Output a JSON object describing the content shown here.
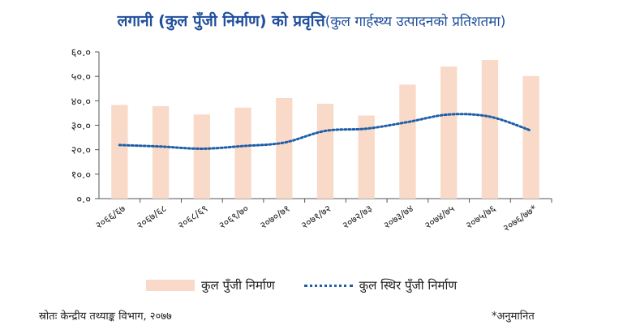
{
  "title": {
    "main": "लगानी (कुल पुँजी निर्माण) को प्रवृत्ति",
    "sub": "(कुल गार्हस्थ्य उत्पादनको प्रतिशतमा)"
  },
  "footer": {
    "source": "स्रोतः केन्द्रीय तथ्याङ्क विभाग, २०७७",
    "note": "*अनुमानित"
  },
  "colors": {
    "bar": "#f9d9c7",
    "line": "#1f5fa8",
    "axis": "#555555",
    "title": "#1f4e9c"
  },
  "chart_data": {
    "type": "bar",
    "title": "लगानी (कुल पुँजी निर्माण) को प्रवृत्ति",
    "subtitle": "(कुल गार्हस्थ्य उत्पादनको प्रतिशतमा)",
    "categories": [
      "२०६६/६७",
      "२०६७/६८",
      "२०६८/६९",
      "२०६९/७०",
      "२०७०/७१",
      "२०७१/७२",
      "२०७२/७३",
      "२०७३/७४",
      "२०७४/७५",
      "२०७५/७६",
      "२०७६/७७*"
    ],
    "ylim": [
      0,
      60
    ],
    "yticks": [
      0,
      10,
      20,
      30,
      40,
      50,
      60
    ],
    "ytick_labels": [
      "०.०",
      "१०.०",
      "२०.०",
      "३०.०",
      "४०.०",
      "५०.०",
      "६०.०"
    ],
    "grid": false,
    "legend_position": "bottom",
    "series": [
      {
        "name": "कुल पुँजी निर्माण",
        "kind": "bar",
        "values": [
          38.3,
          37.8,
          34.4,
          37.2,
          41.1,
          38.8,
          34.0,
          46.6,
          54.0,
          56.7,
          50.1
        ]
      },
      {
        "name": "कुल स्थिर पुँजी निर्माण",
        "kind": "line-dotted",
        "values": [
          21.9,
          21.3,
          20.4,
          21.5,
          22.9,
          27.7,
          28.6,
          31.3,
          34.4,
          33.5,
          27.8
        ]
      }
    ]
  }
}
